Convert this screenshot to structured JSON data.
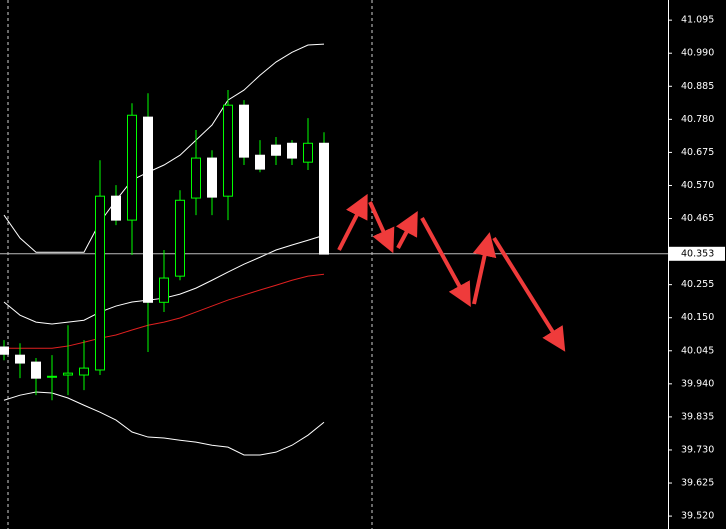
{
  "chart_data": {
    "type": "candlestick",
    "open": [
      40.057,
      40.031,
      40.009,
      39.961,
      39.968,
      39.968,
      39.984,
      40.536,
      40.46,
      40.787,
      40.199,
      40.282,
      40.53,
      40.657,
      40.536,
      40.825,
      40.666,
      40.698,
      40.704,
      40.644,
      40.704
    ],
    "high": [
      40.079,
      40.069,
      40.022,
      40.031,
      40.126,
      40.079,
      40.65,
      40.571,
      40.831,
      40.863,
      40.365,
      40.555,
      40.746,
      40.682,
      40.873,
      40.841,
      40.714,
      40.724,
      40.714,
      40.784,
      40.739
    ],
    "low": [
      40.015,
      39.958,
      39.904,
      39.888,
      39.904,
      39.92,
      39.968,
      40.444,
      40.349,
      40.041,
      40.168,
      40.269,
      40.476,
      40.476,
      40.46,
      40.635,
      40.612,
      40.635,
      40.635,
      40.619,
      40.352
    ],
    "close": [
      40.034,
      40.006,
      39.958,
      39.964,
      39.974,
      39.99,
      40.536,
      40.46,
      40.793,
      40.199,
      40.276,
      40.523,
      40.657,
      40.533,
      40.825,
      40.66,
      40.622,
      40.666,
      40.657,
      40.704,
      40.352
    ],
    "up_color": "#000000",
    "down_color": "#ffffff",
    "wick_color": "#00ff00",
    "lines": [
      {
        "color": "#ffffff",
        "values": [
          40.476,
          40.403,
          40.358,
          40.358,
          40.358,
          40.358,
          40.454,
          40.523,
          40.587,
          40.612,
          40.635,
          40.666,
          40.714,
          40.762,
          40.841,
          40.873,
          40.92,
          40.962,
          40.993,
          41.016,
          41.019
        ]
      },
      {
        "color": "#ffffff",
        "values": [
          40.2,
          40.158,
          40.136,
          40.13,
          40.136,
          40.142,
          40.168,
          40.187,
          40.2,
          40.206,
          40.212,
          40.225,
          40.244,
          40.269,
          40.295,
          40.32,
          40.342,
          40.365,
          40.381,
          40.396,
          40.412
        ]
      },
      {
        "color": "#ffffff",
        "values": [
          39.888,
          39.904,
          39.914,
          39.911,
          39.895,
          39.872,
          39.85,
          39.825,
          39.787,
          39.771,
          39.768,
          39.761,
          39.755,
          39.745,
          39.739,
          39.714,
          39.714,
          39.723,
          39.745,
          39.777,
          39.818
        ]
      },
      {
        "color": "#e02020",
        "values": [
          40.053,
          40.053,
          40.053,
          40.053,
          40.06,
          40.072,
          40.085,
          40.095,
          40.111,
          40.126,
          40.136,
          40.149,
          40.168,
          40.187,
          40.206,
          40.222,
          40.238,
          40.253,
          40.269,
          40.282,
          40.288
        ]
      }
    ],
    "ylim": [
      39.479,
      41.159
    ],
    "yticks": [
      {
        "value": 41.095,
        "label": "41.095"
      },
      {
        "value": 40.99,
        "label": "40.990"
      },
      {
        "value": 40.885,
        "label": "40.885"
      },
      {
        "value": 40.78,
        "label": "40.780"
      },
      {
        "value": 40.675,
        "label": "40.675"
      },
      {
        "value": 40.57,
        "label": "40.570"
      },
      {
        "value": 40.465,
        "label": "40.465"
      },
      {
        "value": 40.255,
        "label": "40.255"
      },
      {
        "value": 40.15,
        "label": "40.150"
      },
      {
        "value": 40.045,
        "label": "40.045"
      },
      {
        "value": 39.94,
        "label": "39.940"
      },
      {
        "value": 39.835,
        "label": "39.835"
      },
      {
        "value": 39.73,
        "label": "39.730"
      },
      {
        "value": 39.625,
        "label": "39.625"
      },
      {
        "value": 39.52,
        "label": "39.520"
      }
    ],
    "current_price": {
      "value": 40.353,
      "label": "40.353"
    }
  }
}
